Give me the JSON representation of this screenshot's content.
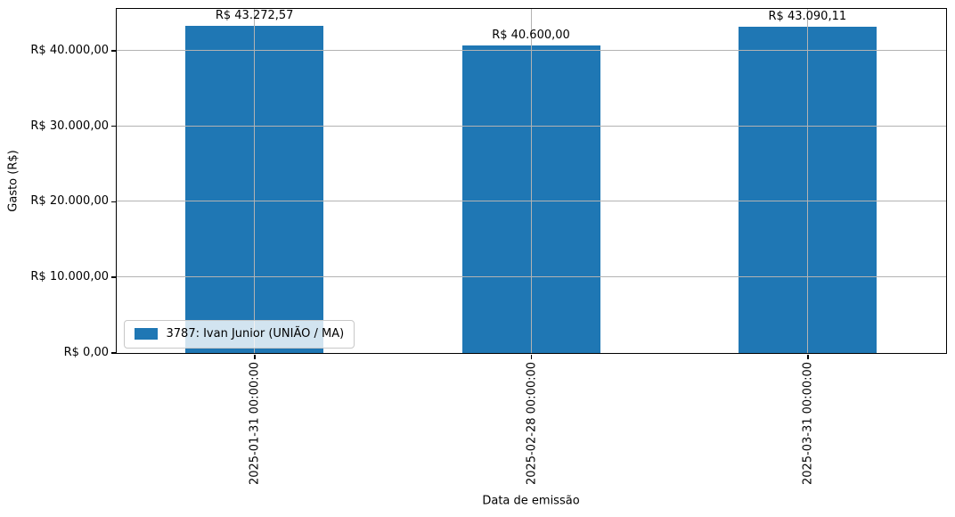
{
  "chart_data": {
    "type": "bar",
    "title": "",
    "xlabel": "Data de emissão",
    "ylabel": "Gasto (R$)",
    "categories": [
      "2025-01-31 00:00:00",
      "2025-02-28 00:00:00",
      "2025-03-31 00:00:00"
    ],
    "series": [
      {
        "name": "3787: Ivan Junior (UNIÃO / MA)",
        "values": [
          43272.57,
          40600.0,
          43090.11
        ],
        "value_labels": [
          "R$ 43.272,57",
          "R$ 40.600,00",
          "R$ 43.090,11"
        ]
      }
    ],
    "yticks": [
      {
        "value": 0,
        "label": "R$ 0,00"
      },
      {
        "value": 10000,
        "label": "R$ 10.000,00"
      },
      {
        "value": 20000,
        "label": "R$ 20.000,00"
      },
      {
        "value": 30000,
        "label": "R$ 30.000,00"
      },
      {
        "value": 40000,
        "label": "R$ 40.000,00"
      }
    ],
    "ylim": [
      0,
      45545
    ],
    "grid": true,
    "legend_position": "lower left",
    "bar_color": "#1f77b4",
    "grid_color": "#b3b3b3"
  }
}
